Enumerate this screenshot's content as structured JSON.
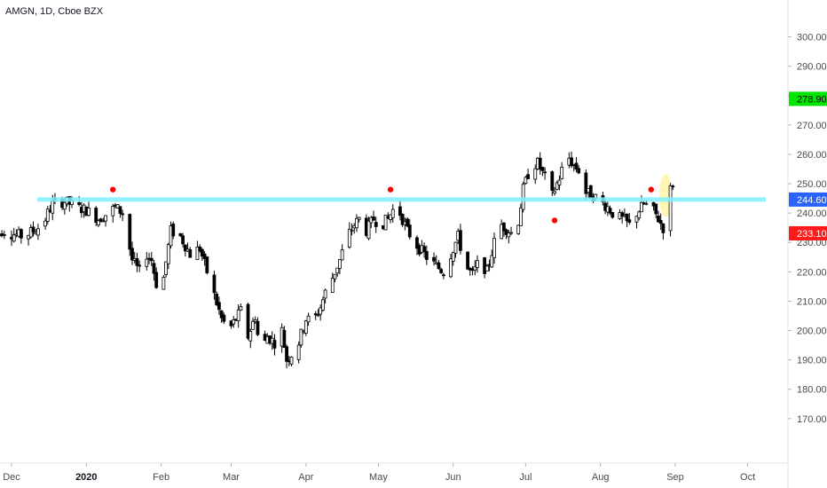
{
  "header": {
    "title": "AMGN, 1D, Cboe BZX"
  },
  "chart_data": {
    "type": "candlestick",
    "title": "AMGN, 1D, Cboe BZX",
    "x_ticks": [
      {
        "label": "Dec",
        "day": 0
      },
      {
        "label": "2020",
        "day": 31
      },
      {
        "label": "Feb",
        "day": 62
      },
      {
        "label": "Mar",
        "day": 91
      },
      {
        "label": "Apr",
        "day": 122
      },
      {
        "label": "May",
        "day": 152
      },
      {
        "label": "Jun",
        "day": 183
      },
      {
        "label": "Jul",
        "day": 213
      },
      {
        "label": "Aug",
        "day": 244
      },
      {
        "label": "Sep",
        "day": 275
      },
      {
        "label": "Oct",
        "day": 305
      }
    ],
    "ylim": [
      163,
      305
    ],
    "y_ticks": [
      "170.00",
      "180.00",
      "190.00",
      "200.00",
      "210.00",
      "220.00",
      "230.00",
      "240.00",
      "250.00",
      "260.00",
      "270.00",
      "280.00",
      "290.00",
      "300.00"
    ],
    "price_labels": [
      {
        "label": "278.90",
        "value": 278.9,
        "color": "#00e600",
        "text_color": "#000000"
      },
      {
        "label": "244.60",
        "value": 244.6,
        "color": "#2962ff",
        "text_color": "#ffffff"
      },
      {
        "label": "233.10",
        "value": 233.1,
        "color": "#ff1a1a",
        "text_color": "#ffffff"
      }
    ],
    "horizontal_line": {
      "value": 244.6,
      "color": "#80f0ff"
    },
    "markers": [
      {
        "day": 42,
        "value": 248,
        "color": "#ff0000"
      },
      {
        "day": 157,
        "value": 248,
        "color": "#ff0000"
      },
      {
        "day": 225,
        "value": 237.5,
        "color": "#ff0000"
      },
      {
        "day": 265,
        "value": 248,
        "color": "#ff0000"
      }
    ],
    "highlight": {
      "day": 271,
      "value": 246,
      "color": "#fff59d"
    },
    "anchors": [
      [
        -8,
        230
      ],
      [
        -4,
        234
      ],
      [
        0,
        233
      ],
      [
        5,
        232
      ],
      [
        9,
        234
      ],
      [
        13,
        236
      ],
      [
        15,
        240
      ],
      [
        17,
        243
      ],
      [
        22,
        244
      ],
      [
        27,
        242
      ],
      [
        31,
        241
      ],
      [
        36,
        238
      ],
      [
        40,
        240
      ],
      [
        43,
        242
      ],
      [
        46,
        240
      ],
      [
        48,
        232
      ],
      [
        50,
        224
      ],
      [
        53,
        220
      ],
      [
        56,
        226
      ],
      [
        58,
        224
      ],
      [
        61,
        212
      ],
      [
        63,
        218
      ],
      [
        66,
        234
      ],
      [
        70,
        232
      ],
      [
        74,
        226
      ],
      [
        78,
        228
      ],
      [
        81,
        220
      ],
      [
        84,
        212
      ],
      [
        87,
        204
      ],
      [
        90,
        200
      ],
      [
        93,
        204
      ],
      [
        96,
        208
      ],
      [
        98,
        198
      ],
      [
        101,
        205
      ],
      [
        103,
        192
      ],
      [
        106,
        198
      ],
      [
        109,
        196
      ],
      [
        112,
        200
      ],
      [
        114,
        190
      ],
      [
        116,
        192
      ],
      [
        119,
        196
      ],
      [
        122,
        204
      ],
      [
        125,
        203
      ],
      [
        128,
        208
      ],
      [
        130,
        213
      ],
      [
        133,
        218
      ],
      [
        136,
        224
      ],
      [
        139,
        232
      ],
      [
        142,
        236
      ],
      [
        144,
        238
      ],
      [
        147,
        234
      ],
      [
        150,
        238
      ],
      [
        153,
        236
      ],
      [
        156,
        238
      ],
      [
        158,
        241
      ],
      [
        161,
        240
      ],
      [
        164,
        234
      ],
      [
        167,
        230
      ],
      [
        170,
        227
      ],
      [
        173,
        224
      ],
      [
        176,
        222
      ],
      [
        179,
        220
      ],
      [
        182,
        226
      ],
      [
        185,
        232
      ],
      [
        188,
        222
      ],
      [
        191,
        219
      ],
      [
        194,
        224
      ],
      [
        197,
        220
      ],
      [
        200,
        230
      ],
      [
        203,
        236
      ],
      [
        206,
        234
      ],
      [
        209,
        232
      ],
      [
        212,
        248
      ],
      [
        215,
        256
      ],
      [
        218,
        257
      ],
      [
        221,
        252
      ],
      [
        224,
        246
      ],
      [
        227,
        252
      ],
      [
        230,
        260
      ],
      [
        233,
        256
      ],
      [
        236,
        254
      ],
      [
        238,
        247
      ],
      [
        241,
        246
      ],
      [
        244,
        244
      ],
      [
        247,
        242
      ],
      [
        250,
        239
      ],
      [
        253,
        238
      ],
      [
        256,
        236
      ],
      [
        259,
        240
      ],
      [
        262,
        243
      ],
      [
        265,
        242
      ],
      [
        268,
        238
      ],
      [
        270,
        235
      ],
      [
        272,
        246
      ],
      [
        274,
        250
      ]
    ]
  }
}
